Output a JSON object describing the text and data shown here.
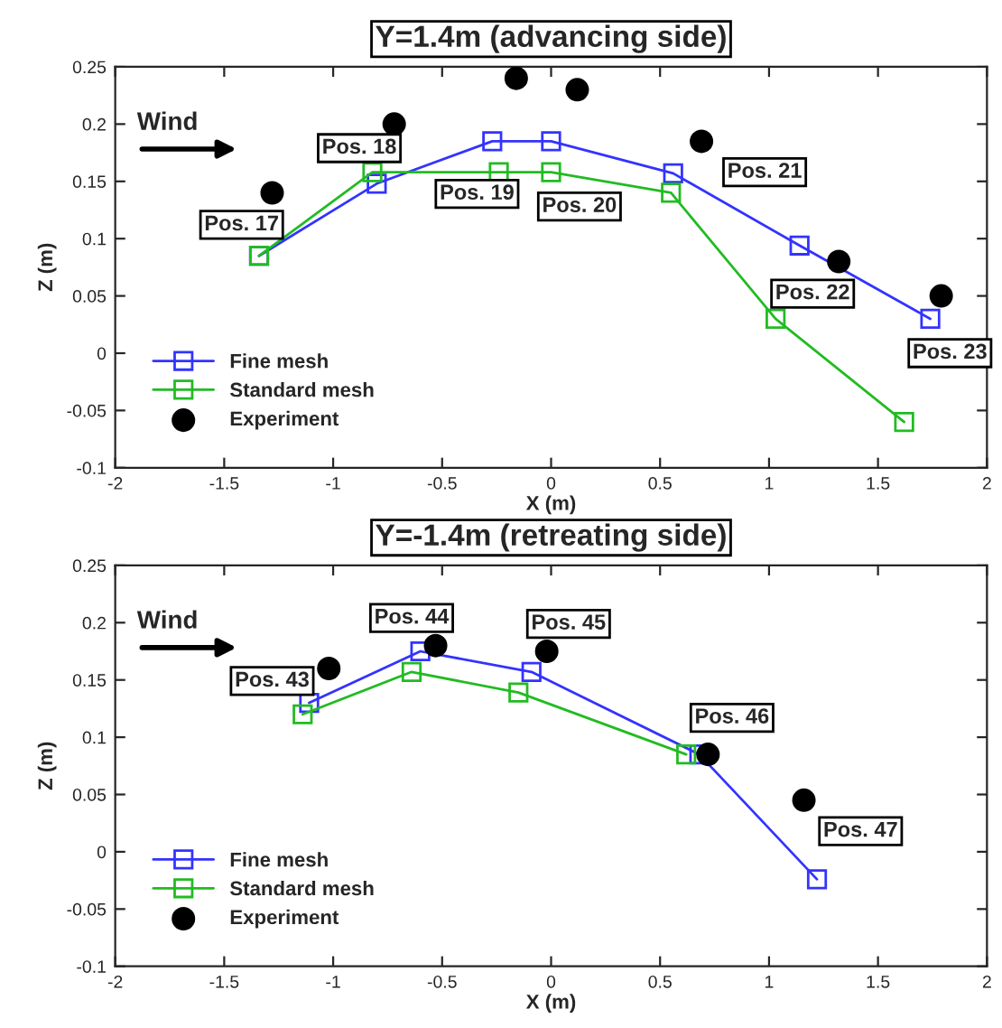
{
  "chart_data": [
    {
      "type": "line",
      "title": "Y=1.4m (advancing side)",
      "xlabel": "X (m)",
      "ylabel": "Z (m)",
      "xlim": [
        -2,
        2
      ],
      "ylim": [
        -0.1,
        0.25
      ],
      "xticks": [
        -2,
        -1.5,
        -1,
        -0.5,
        0,
        0.5,
        1,
        1.5,
        2
      ],
      "yticks": [
        -0.1,
        -0.05,
        0,
        0.05,
        0.1,
        0.15,
        0.2,
        0.25
      ],
      "legend": "bottom left",
      "grid": false,
      "series": [
        {
          "name": "Fine mesh",
          "color": "#3333ff",
          "marker": "square",
          "x": [
            -1.34,
            -0.8,
            -0.27,
            0,
            0.56,
            1.14,
            1.74
          ],
          "values": [
            0.085,
            0.148,
            0.185,
            0.185,
            0.157,
            0.094,
            0.03
          ]
        },
        {
          "name": "Standard mesh",
          "color": "#22bb22",
          "marker": "square",
          "x": [
            -1.34,
            -0.82,
            -0.24,
            0,
            0.55,
            1.03,
            1.62
          ],
          "values": [
            0.085,
            0.158,
            0.158,
            0.158,
            0.14,
            0.03,
            -0.06
          ]
        },
        {
          "name": "Experiment",
          "type": "scatter",
          "color": "#000000",
          "marker": "circle",
          "x": [
            -1.28,
            -0.72,
            -0.16,
            0.12,
            0.69,
            1.32,
            1.79
          ],
          "values": [
            0.14,
            0.2,
            0.24,
            0.23,
            0.185,
            0.08,
            0.05
          ]
        }
      ],
      "annotations": [
        "Wind",
        "Pos. 17",
        "Pos. 18",
        "Pos. 19",
        "Pos. 20",
        "Pos. 21",
        "Pos. 22",
        "Pos. 23"
      ]
    },
    {
      "type": "line",
      "title": "Y=-1.4m (retreating side)",
      "xlabel": "X (m)",
      "ylabel": "Z (m)",
      "xlim": [
        -2,
        2
      ],
      "ylim": [
        -0.1,
        0.25
      ],
      "xticks": [
        -2,
        -1.5,
        -1,
        -0.5,
        0,
        0.5,
        1,
        1.5,
        2
      ],
      "yticks": [
        -0.1,
        -0.05,
        0,
        0.05,
        0.1,
        0.15,
        0.2,
        0.25
      ],
      "legend": "bottom left",
      "grid": false,
      "series": [
        {
          "name": "Fine mesh",
          "color": "#3333ff",
          "marker": "square",
          "x": [
            -1.11,
            -0.6,
            -0.09,
            0.68,
            1.22
          ],
          "values": [
            0.13,
            0.175,
            0.157,
            0.085,
            -0.024
          ]
        },
        {
          "name": "Standard mesh",
          "color": "#22bb22",
          "marker": "square",
          "x": [
            -1.14,
            -0.64,
            -0.15,
            0.62
          ],
          "values": [
            0.12,
            0.157,
            0.139,
            0.085
          ]
        },
        {
          "name": "Experiment",
          "type": "scatter",
          "color": "#000000",
          "marker": "circle",
          "x": [
            -1.02,
            -0.53,
            -0.02,
            0.72,
            1.16
          ],
          "values": [
            0.16,
            0.18,
            0.175,
            0.085,
            0.045
          ]
        }
      ],
      "annotations": [
        "Wind",
        "Pos. 43",
        "Pos. 44",
        "Pos. 45",
        "Pos. 46",
        "Pos. 47"
      ]
    }
  ]
}
